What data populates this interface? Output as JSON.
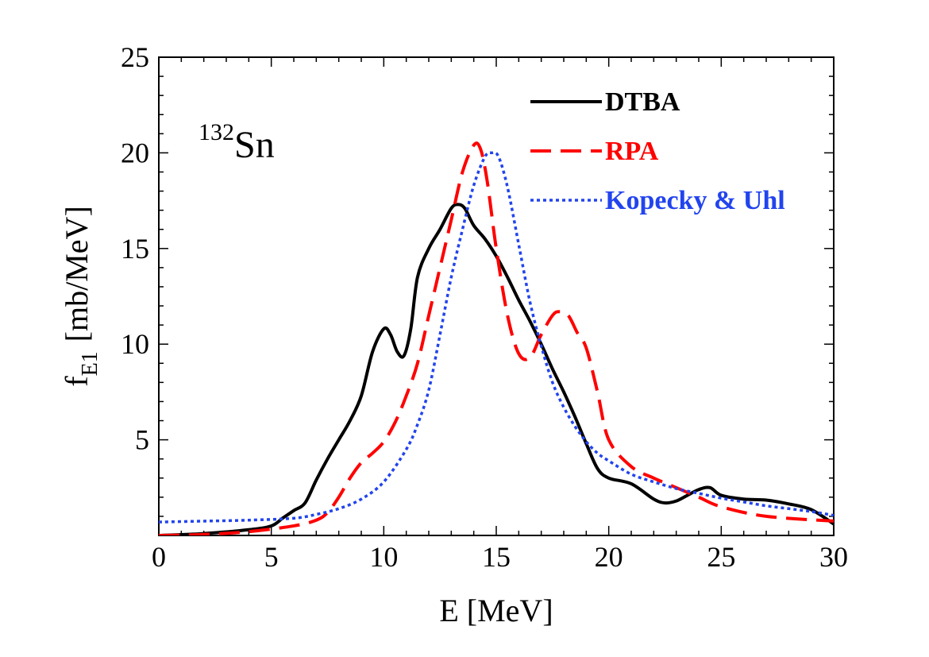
{
  "chart_data": {
    "type": "line",
    "title": "",
    "xlabel": "E [MeV]",
    "ylabel_main": "f",
    "ylabel_sub": "E1",
    "ylabel_unit": "[mb/MeV]",
    "nucleus_mass": "132",
    "nucleus_symbol": "Sn",
    "xlim": [
      0,
      30
    ],
    "ylim": [
      0,
      25
    ],
    "xticks": [
      0,
      5,
      10,
      15,
      20,
      25,
      30
    ],
    "yticks": [
      5,
      10,
      15,
      20,
      25
    ],
    "xtick_labels": [
      "0",
      "5",
      "10",
      "15",
      "20",
      "25",
      "30"
    ],
    "ytick_labels": [
      "5",
      "10",
      "15",
      "20",
      "25"
    ],
    "legend_position": "top-right",
    "series": [
      {
        "name": "DTBA",
        "color": "#000000",
        "style": "solid",
        "x": [
          0,
          2,
          4,
          5,
          5.5,
          6,
          6.5,
          7,
          7.5,
          8,
          8.5,
          9,
          9.5,
          10,
          10.3,
          10.6,
          10.9,
          11.2,
          11.5,
          12,
          12.5,
          13,
          13.3,
          13.6,
          14,
          14.5,
          15,
          15.5,
          16,
          16.5,
          17,
          17.5,
          18,
          18.5,
          19,
          19.5,
          20,
          21,
          22,
          22.5,
          23,
          23.5,
          24,
          24.5,
          25,
          26,
          27,
          28,
          29,
          30
        ],
        "y": [
          0,
          0.1,
          0.3,
          0.5,
          0.9,
          1.3,
          1.7,
          2.9,
          4.0,
          5.0,
          6.0,
          7.3,
          9.6,
          10.8,
          10.5,
          9.6,
          9.4,
          10.8,
          13.5,
          15.0,
          16.0,
          17.1,
          17.3,
          17.1,
          16.2,
          15.5,
          14.6,
          13.5,
          12.3,
          11.2,
          10.0,
          8.7,
          7.5,
          6.2,
          4.8,
          3.5,
          3.0,
          2.7,
          1.9,
          1.7,
          1.8,
          2.1,
          2.4,
          2.5,
          2.1,
          1.9,
          1.85,
          1.65,
          1.35,
          0.6
        ]
      },
      {
        "name": "RPA",
        "color": "#ff0000",
        "style": "dashed",
        "x": [
          0,
          2,
          4,
          6,
          7,
          7.5,
          8,
          8.5,
          9,
          9.5,
          10,
          10.5,
          11,
          11.5,
          12,
          12.5,
          13,
          13.5,
          14,
          14.3,
          14.6,
          15,
          15.5,
          16,
          16.5,
          17,
          17.5,
          17.8,
          18.2,
          18.6,
          19,
          19.5,
          20,
          21,
          22,
          23,
          24,
          25,
          27,
          30
        ],
        "y": [
          0,
          0.05,
          0.2,
          0.5,
          0.8,
          1.2,
          2.0,
          3.0,
          3.8,
          4.3,
          4.9,
          5.9,
          7.3,
          9.0,
          11.5,
          14.0,
          16.5,
          19.0,
          20.4,
          20.2,
          18.5,
          15.0,
          11.5,
          9.5,
          9.3,
          10.5,
          11.5,
          11.7,
          11.5,
          10.6,
          9.8,
          7.5,
          5.0,
          3.6,
          3.0,
          2.5,
          2.0,
          1.5,
          1.0,
          0.75
        ]
      },
      {
        "name": "Kopecky & Uhl",
        "color": "#2244ee",
        "style": "dotted",
        "x": [
          0,
          2,
          4,
          6,
          7,
          8,
          9,
          10,
          11,
          11.5,
          12,
          12.5,
          13,
          13.5,
          14,
          14.5,
          14.8,
          15.1,
          15.5,
          16,
          16.5,
          17,
          17.5,
          18,
          18.5,
          19,
          19.5,
          20,
          21,
          22,
          23,
          24,
          25,
          26,
          27,
          28,
          29,
          30
        ],
        "y": [
          0.7,
          0.75,
          0.8,
          0.9,
          1.1,
          1.4,
          1.9,
          2.8,
          4.5,
          5.8,
          7.6,
          10.5,
          13.5,
          16.0,
          18.3,
          19.8,
          20.0,
          19.8,
          18.2,
          15.2,
          12.2,
          9.9,
          8.0,
          6.7,
          5.7,
          4.9,
          4.3,
          3.9,
          3.2,
          2.8,
          2.45,
          2.2,
          1.95,
          1.75,
          1.55,
          1.4,
          1.25,
          1.05
        ]
      }
    ]
  }
}
